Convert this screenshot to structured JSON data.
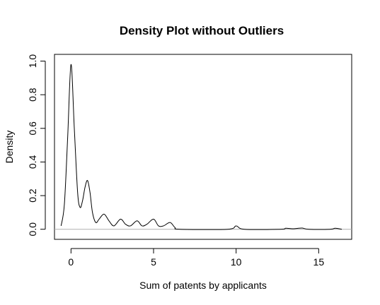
{
  "chart_data": {
    "type": "line",
    "title": "Density Plot without Outliers",
    "xlabel": "Sum of patents by applicants",
    "ylabel": "Density",
    "xlim": [
      -1.0,
      17.0
    ],
    "ylim": [
      -0.06,
      1.04
    ],
    "x_ticks": [
      0,
      5,
      10,
      15
    ],
    "y_ticks": [
      0.0,
      0.2,
      0.4,
      0.6,
      0.8,
      1.0
    ],
    "x_tick_labels": [
      "0",
      "5",
      "10",
      "15"
    ],
    "y_tick_labels": [
      "0.0",
      "0.2",
      "0.4",
      "0.6",
      "0.8",
      "1.0"
    ],
    "grid": false,
    "baseline": 0,
    "series": [
      {
        "x": [
          -0.6,
          -0.4,
          -0.2,
          0.0,
          0.2,
          0.4,
          0.55,
          0.7,
          0.85,
          1.0,
          1.15,
          1.3,
          1.5,
          1.7,
          2.0,
          2.3,
          2.6,
          3.0,
          3.3,
          3.6,
          4.0,
          4.3,
          4.6,
          5.0,
          5.3,
          5.6,
          6.0,
          6.3,
          6.6,
          9.5,
          10.0,
          10.5,
          12.7,
          13.0,
          13.4,
          13.7,
          14.0,
          14.4,
          15.7,
          16.0,
          16.4
        ],
        "y": [
          0.02,
          0.15,
          0.55,
          0.98,
          0.6,
          0.22,
          0.13,
          0.17,
          0.25,
          0.29,
          0.22,
          0.1,
          0.04,
          0.06,
          0.09,
          0.05,
          0.02,
          0.06,
          0.03,
          0.02,
          0.05,
          0.02,
          0.03,
          0.06,
          0.02,
          0.02,
          0.04,
          0.01,
          0.0,
          0.0,
          0.02,
          0.0,
          0.0,
          0.006,
          0.003,
          0.005,
          0.007,
          0.0,
          0.0,
          0.006,
          0.0
        ]
      }
    ]
  }
}
